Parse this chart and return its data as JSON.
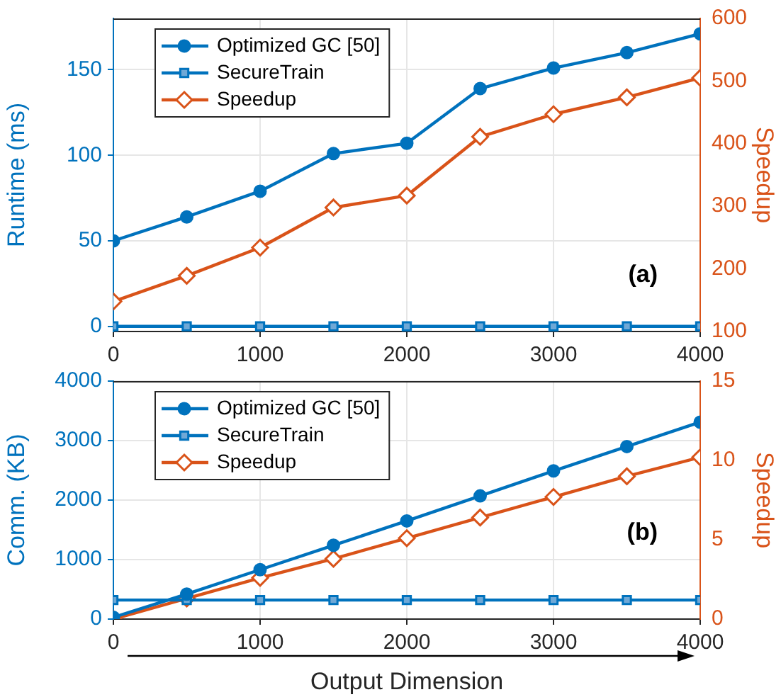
{
  "chart_data": [
    {
      "type": "line",
      "ylabel": "Runtime (ms)",
      "y2label": "Speedup",
      "x": [
        0,
        500,
        1000,
        1500,
        2000,
        2500,
        3000,
        3500,
        4000
      ],
      "xlim": [
        0,
        4000
      ],
      "xticks": [
        0,
        1000,
        2000,
        3000,
        4000
      ],
      "ylim": [
        -3,
        180
      ],
      "yticks": [
        0,
        50,
        100,
        150
      ],
      "y2lim": [
        100,
        600
      ],
      "y2ticks": [
        100,
        200,
        300,
        400,
        500,
        600
      ],
      "series": [
        {
          "name": "Optimized GC [50]",
          "color": "#0072bd",
          "marker": "circle",
          "values": [
            50,
            64,
            79,
            101,
            107,
            139,
            151,
            160,
            171
          ]
        },
        {
          "name": "SecureTrain",
          "color": "#0072bd",
          "marker": "square",
          "values": [
            0,
            0,
            0,
            0,
            0,
            0,
            0,
            0,
            0
          ]
        },
        {
          "name": "Speedup",
          "color": "#d95319",
          "marker": "diamond",
          "axis": "y2",
          "values": [
            148,
            189,
            234,
            298,
            317,
            411,
            447,
            474,
            505
          ]
        }
      ],
      "annotations": [
        "(a)"
      ],
      "grid": true,
      "legend": "top left",
      "line_style": "solid"
    },
    {
      "type": "line",
      "xlabel": "Output Dimension",
      "ylabel": "Comm. (KB)",
      "y2label": "Speedup",
      "x": [
        0,
        500,
        1000,
        1500,
        2000,
        2500,
        3000,
        3500,
        4000
      ],
      "xlim": [
        0,
        4000
      ],
      "xticks": [
        0,
        1000,
        2000,
        3000,
        4000
      ],
      "ylim": [
        0,
        4000
      ],
      "yticks": [
        0,
        1000,
        2000,
        3000,
        4000
      ],
      "y2lim": [
        0,
        15
      ],
      "y2ticks": [
        0,
        5,
        10,
        15
      ],
      "series": [
        {
          "name": "Optimized GC [50]",
          "color": "#0072bd",
          "marker": "circle",
          "values": [
            30,
            420,
            830,
            1240,
            1650,
            2070,
            2490,
            2900,
            3310
          ]
        },
        {
          "name": "SecureTrain",
          "color": "#0072bd",
          "marker": "square",
          "values": [
            320,
            320,
            320,
            320,
            320,
            320,
            320,
            320,
            320
          ]
        },
        {
          "name": "Speedup",
          "color": "#d95319",
          "marker": "diamond",
          "axis": "y2",
          "values": [
            0,
            1.3,
            2.6,
            3.8,
            5.1,
            6.4,
            7.7,
            9.0,
            10.2
          ]
        }
      ],
      "annotations": [
        "(b)"
      ],
      "grid": true,
      "legend": "top left",
      "line_style": "solid"
    }
  ]
}
